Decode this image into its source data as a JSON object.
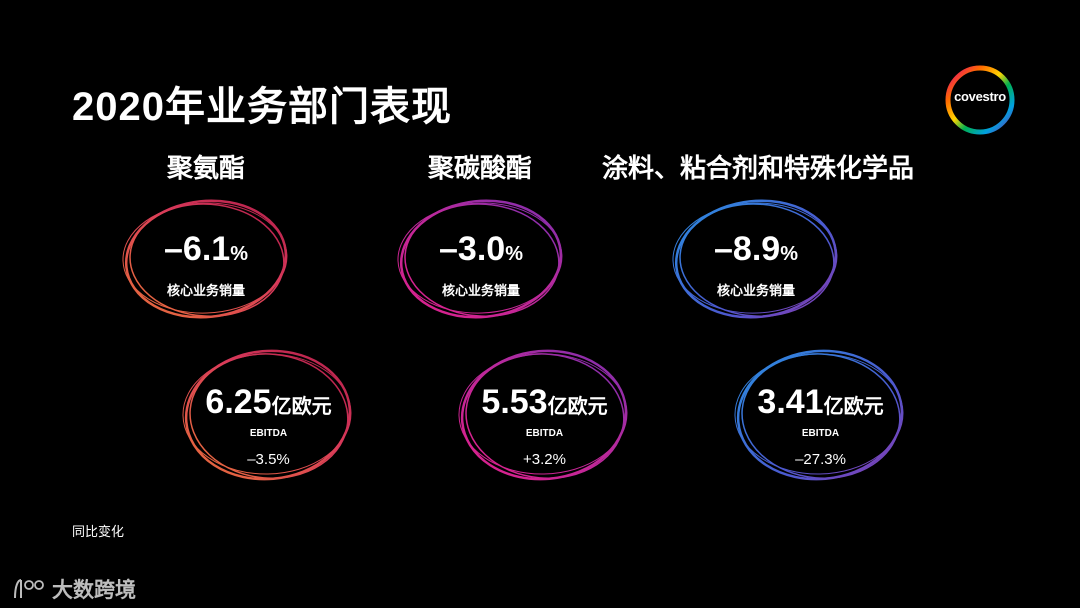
{
  "title": "2020年业务部门表现",
  "logo": {
    "text": "covestro"
  },
  "segments": [
    {
      "name": "聚氨酯",
      "volume": {
        "value": "–6.1",
        "unit": "%",
        "label": "核心业务销量"
      },
      "ebitda": {
        "value": "6.25",
        "unit": "亿欧元",
        "label": "EBITDA",
        "change": "–3.5%"
      },
      "colors": [
        "#e8703a",
        "#d93a5a",
        "#b01c4a"
      ]
    },
    {
      "name": "聚碳酸酯",
      "volume": {
        "value": "–3.0",
        "unit": "%",
        "label": "核心业务销量"
      },
      "ebitda": {
        "value": "5.53",
        "unit": "亿欧元",
        "label": "EBITDA",
        "change": "+3.2%"
      },
      "colors": [
        "#e0208a",
        "#b52a9e",
        "#7a2fb0"
      ]
    },
    {
      "name": "涂料、粘合剂和特殊化学品",
      "volume": {
        "value": "–8.9",
        "unit": "%",
        "label": "核心业务销量"
      },
      "ebitda": {
        "value": "3.41",
        "unit": "亿欧元",
        "label": "EBITDA",
        "change": "–27.3%"
      },
      "colors": [
        "#2a8de0",
        "#4a5ad0",
        "#8a3ab0"
      ]
    }
  ],
  "footnote": "同比变化",
  "watermark": "大数跨境"
}
